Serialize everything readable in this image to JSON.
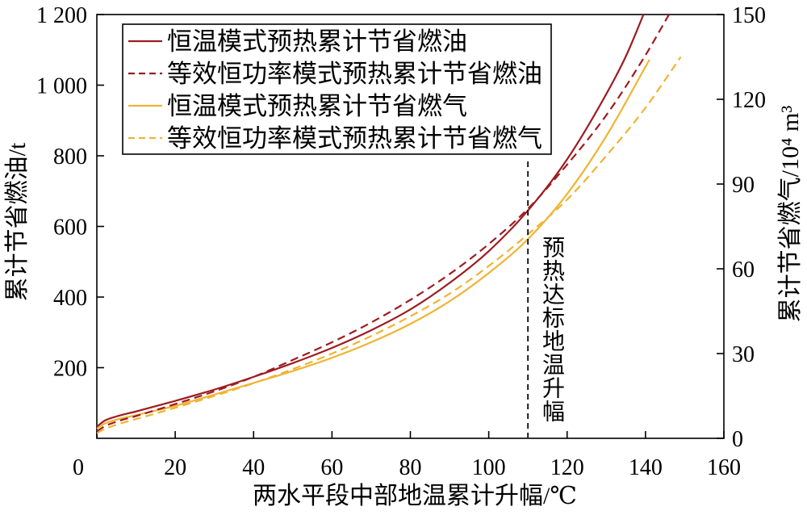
{
  "chart_data": {
    "type": "line",
    "xlabel": "两水平段中部地温累计升幅/℃",
    "ylabel": "累计节省燃油/t",
    "y2label": "累计节省燃气/10⁴ m³",
    "xlim": [
      0,
      160
    ],
    "ylim": [
      0,
      1200
    ],
    "y2lim": [
      0,
      150
    ],
    "xticks": [
      0,
      20,
      40,
      60,
      80,
      100,
      120,
      140,
      160
    ],
    "xtick_labels": [
      "0",
      "20",
      "40",
      "60",
      "80",
      "100",
      "120",
      "140",
      "160"
    ],
    "yticks": [
      200,
      400,
      600,
      800,
      1000,
      1200
    ],
    "ytick_labels": [
      "200",
      "400",
      "600",
      "800",
      "1 000",
      "1 200"
    ],
    "y2ticks": [
      0,
      30,
      60,
      90,
      120,
      150
    ],
    "y2tick_labels": [
      "0",
      "30",
      "60",
      "90",
      "120",
      "150"
    ],
    "grid": false,
    "legend_position": "top-left",
    "series": [
      {
        "name": "恒温模式预热累计节省燃油",
        "right_axis": false,
        "dashed": false,
        "color": "#9d1c20",
        "x": [
          0,
          2,
          5,
          10,
          20,
          30,
          40,
          50,
          60,
          70,
          80,
          90,
          100,
          110,
          120,
          130,
          135,
          139.5
        ],
        "y": [
          33,
          50,
          62,
          76,
          106,
          138,
          174,
          213,
          256,
          306,
          365,
          440,
          530,
          645,
          790,
          975,
          1082,
          1200
        ]
      },
      {
        "name": "等效恒功率模式预热累计节省燃油",
        "right_axis": false,
        "dashed": true,
        "color": "#9d1c20",
        "x": [
          0,
          2,
          5,
          10,
          20,
          30,
          40,
          50,
          60,
          70,
          80,
          90,
          100,
          110,
          120,
          130,
          140,
          146
        ],
        "y": [
          20,
          34,
          47,
          63,
          97,
          133,
          174,
          222,
          272,
          328,
          392,
          465,
          550,
          650,
          775,
          915,
          1085,
          1200
        ]
      },
      {
        "name": "恒温模式预热累计节省燃气",
        "right_axis": true,
        "dashed": false,
        "color": "#efb433",
        "x": [
          0,
          2,
          5,
          10,
          20,
          30,
          40,
          50,
          60,
          70,
          80,
          90,
          100,
          110,
          120,
          130,
          141
        ],
        "y": [
          3.5,
          5.2,
          6.6,
          8.2,
          11.5,
          15.5,
          19.6,
          23.8,
          28.5,
          34,
          40.5,
          48.5,
          58.5,
          70.5,
          86.5,
          107,
          134
        ]
      },
      {
        "name": "等效恒功率模式预热累计节省燃气",
        "right_axis": true,
        "dashed": true,
        "color": "#efb433",
        "x": [
          0,
          2,
          5,
          10,
          20,
          30,
          40,
          50,
          60,
          70,
          80,
          90,
          100,
          110,
          120,
          130,
          140,
          149
        ],
        "y": [
          1.8,
          3.3,
          4.8,
          6.8,
          10.8,
          15,
          19.5,
          24.5,
          30,
          36.2,
          43.2,
          51.2,
          61,
          72.2,
          84.5,
          100,
          117,
          135
        ]
      }
    ],
    "reference_line": {
      "x": 110,
      "y": [
        0,
        785
      ],
      "dashed": true,
      "color": "#1a1a1a"
    },
    "annotation": "预热达标地温升幅"
  }
}
